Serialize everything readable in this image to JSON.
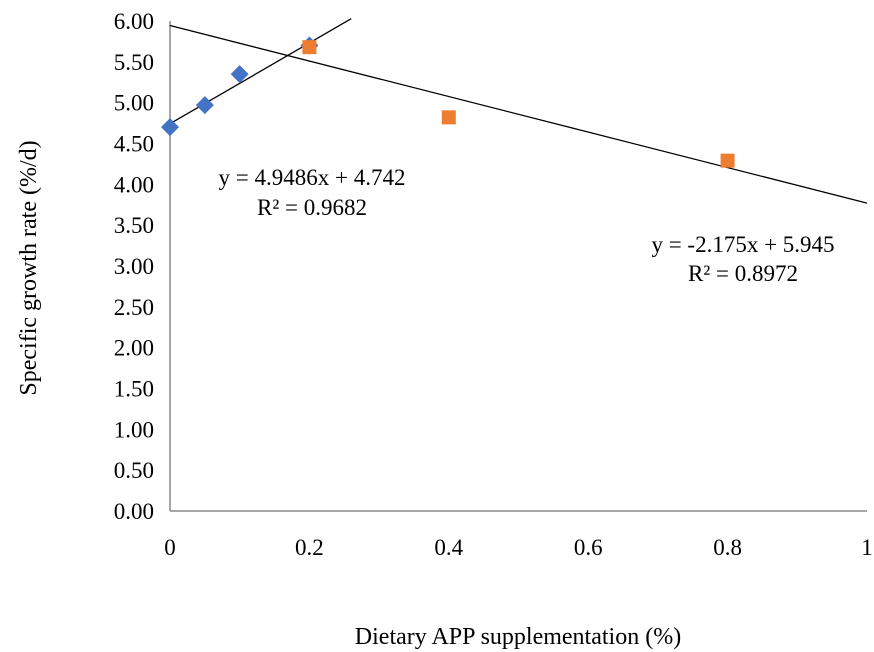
{
  "chart_data": {
    "type": "scatter",
    "xlabel": "Dietary APP supplementation (%)",
    "ylabel": "Specific growth rate (%/d)",
    "xlim": [
      0,
      1
    ],
    "ylim": [
      0,
      6
    ],
    "x_ticks": [
      "0",
      "0.2",
      "0.4",
      "0.6",
      "0.8",
      "1"
    ],
    "y_ticks": [
      "0.00",
      "0.50",
      "1.00",
      "1.50",
      "2.00",
      "2.50",
      "3.00",
      "3.50",
      "4.00",
      "4.50",
      "5.00",
      "5.50",
      "6.00"
    ],
    "grid": false,
    "legend": "none",
    "series": [
      {
        "marker": "diamond",
        "color": "#4472C4",
        "x": [
          0,
          0.05,
          0.1,
          0.2
        ],
        "y": [
          4.7,
          4.97,
          5.35,
          5.7
        ],
        "trendline": {
          "slope": 4.9486,
          "intercept": 4.742,
          "x_range": [
            0,
            0.26
          ],
          "equation": "y = 4.9486x + 4.742",
          "r2": "R² = 0.9682"
        }
      },
      {
        "marker": "square",
        "color": "#ED7D31",
        "x": [
          0.2,
          0.4,
          0.8
        ],
        "y": [
          5.68,
          4.82,
          4.29
        ],
        "trendline": {
          "slope": -2.175,
          "intercept": 5.945,
          "x_range": [
            0,
            1
          ],
          "equation": "y = -2.175x + 5.945",
          "r2": "R² = 0.8972"
        }
      }
    ]
  }
}
